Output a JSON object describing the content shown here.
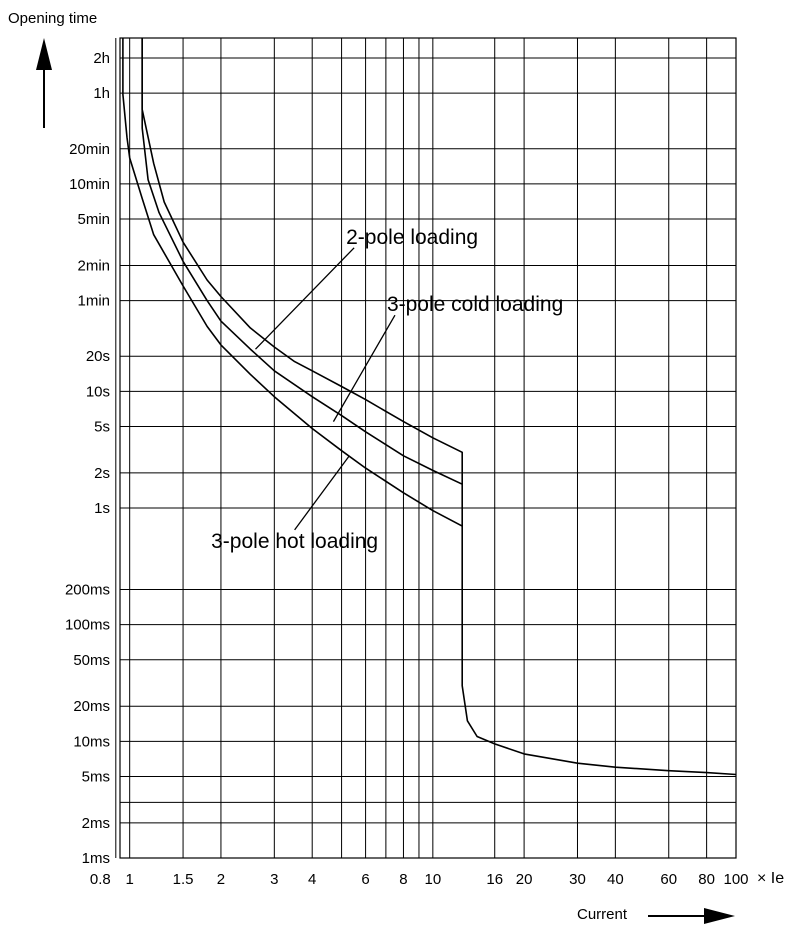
{
  "chart_data": {
    "type": "line",
    "title": "",
    "ylabel": "Opening time",
    "xlabel": "Current",
    "x_unit": "× Ie",
    "x_scale": "log",
    "y_scale": "log",
    "xlim": [
      0.8,
      100
    ],
    "ylim_seconds": [
      0.001,
      7200
    ],
    "grid": true,
    "x_ticks": [
      {
        "label": "0.8",
        "value": 0.8
      },
      {
        "label": "1",
        "value": 1
      },
      {
        "label": "1.5",
        "value": 1.5
      },
      {
        "label": "2",
        "value": 2
      },
      {
        "label": "3",
        "value": 3
      },
      {
        "label": "4",
        "value": 4
      },
      {
        "label": "6",
        "value": 6
      },
      {
        "label": "8",
        "value": 8
      },
      {
        "label": "10",
        "value": 10
      },
      {
        "label": "16",
        "value": 16
      },
      {
        "label": "20",
        "value": 20
      },
      {
        "label": "30",
        "value": 30
      },
      {
        "label": "40",
        "value": 40
      },
      {
        "label": "60",
        "value": 60
      },
      {
        "label": "80",
        "value": 80
      },
      {
        "label": "100",
        "value": 100
      }
    ],
    "extra_x_grid": [
      0.9,
      5,
      7,
      9
    ],
    "y_ticks": [
      {
        "label": "2h",
        "value": 7200
      },
      {
        "label": "1h",
        "value": 3600
      },
      {
        "label": "20min",
        "value": 1200
      },
      {
        "label": "10min",
        "value": 600
      },
      {
        "label": "5min",
        "value": 300
      },
      {
        "label": "2min",
        "value": 120
      },
      {
        "label": "1min",
        "value": 60
      },
      {
        "label": "20s",
        "value": 20
      },
      {
        "label": "10s",
        "value": 10
      },
      {
        "label": "5s",
        "value": 5
      },
      {
        "label": "2s",
        "value": 2
      },
      {
        "label": "1s",
        "value": 1
      },
      {
        "label": "200ms",
        "value": 0.2
      },
      {
        "label": "100ms",
        "value": 0.1
      },
      {
        "label": "50ms",
        "value": 0.05
      },
      {
        "label": "20ms",
        "value": 0.02
      },
      {
        "label": "10ms",
        "value": 0.01
      },
      {
        "label": "5ms",
        "value": 0.005
      },
      {
        "label": "2ms",
        "value": 0.002
      },
      {
        "label": "1ms",
        "value": 0.001
      }
    ],
    "extra_y_grid": [
      0.003
    ],
    "series": [
      {
        "name": "2-pole loading",
        "label": "2-pole loading",
        "points": [
          [
            1.1,
            12000
          ],
          [
            1.1,
            2600
          ],
          [
            1.2,
            900
          ],
          [
            1.3,
            420
          ],
          [
            1.5,
            190
          ],
          [
            1.8,
            90
          ],
          [
            2,
            65
          ],
          [
            2.5,
            35
          ],
          [
            3,
            24
          ],
          [
            3.5,
            18
          ],
          [
            4,
            15
          ],
          [
            5,
            11
          ],
          [
            6,
            8.5
          ],
          [
            8,
            5.5
          ],
          [
            10,
            4
          ],
          [
            12.5,
            3
          ],
          [
            12.5,
            1.6
          ]
        ]
      },
      {
        "name": "3-pole cold loading",
        "label": "3-pole cold loading",
        "points": [
          [
            1.1,
            12000
          ],
          [
            1.1,
            1800
          ],
          [
            1.15,
            650
          ],
          [
            1.25,
            340
          ],
          [
            1.5,
            130
          ],
          [
            1.8,
            60
          ],
          [
            2,
            40
          ],
          [
            2.5,
            23
          ],
          [
            3,
            15
          ],
          [
            4,
            9
          ],
          [
            5,
            6.2
          ],
          [
            6,
            4.5
          ],
          [
            8,
            2.8
          ],
          [
            10,
            2.1
          ],
          [
            12.5,
            1.6
          ],
          [
            12.5,
            0.7
          ]
        ]
      },
      {
        "name": "3-pole hot loading",
        "label": "3-pole hot loading",
        "points": [
          [
            0.95,
            12000
          ],
          [
            0.95,
            3500
          ],
          [
            0.98,
            1500
          ],
          [
            1,
            1000
          ],
          [
            1.1,
            450
          ],
          [
            1.2,
            220
          ],
          [
            1.5,
            80
          ],
          [
            1.8,
            36
          ],
          [
            2,
            25
          ],
          [
            2.5,
            14
          ],
          [
            3,
            9
          ],
          [
            4,
            4.8
          ],
          [
            5,
            3.1
          ],
          [
            6,
            2.2
          ],
          [
            8,
            1.35
          ],
          [
            10,
            0.95
          ],
          [
            12.5,
            0.7
          ],
          [
            12.5,
            0.03
          ],
          [
            13,
            0.015
          ],
          [
            14,
            0.011
          ],
          [
            16,
            0.0095
          ],
          [
            20,
            0.0078
          ],
          [
            30,
            0.0065
          ],
          [
            40,
            0.006
          ],
          [
            60,
            0.0056
          ],
          [
            80,
            0.0054
          ],
          [
            100,
            0.0052
          ]
        ]
      }
    ],
    "annotations": [
      {
        "text": "2-pole loading",
        "series": "2-pole loading",
        "target": [
          2.6,
          23
        ],
        "label_pos": [
          5.5,
          170
        ]
      },
      {
        "text": "3-pole cold loading",
        "series": "3-pole cold loading",
        "target": [
          4.7,
          5.5
        ],
        "label_pos": [
          7.5,
          45
        ]
      },
      {
        "text": "3-pole hot loading",
        "series": "3-pole hot loading",
        "target": [
          5.3,
          2.8
        ],
        "label_pos": [
          3.5,
          0.65
        ]
      }
    ]
  }
}
